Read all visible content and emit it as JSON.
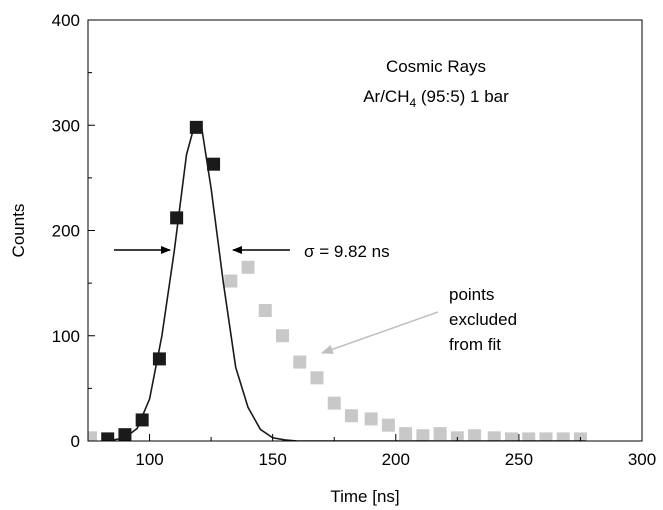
{
  "chart_data": {
    "type": "scatter",
    "title": "",
    "xlabel": "Time [ns]",
    "ylabel": "Counts",
    "xlim": [
      75,
      300
    ],
    "ylim": [
      0,
      400
    ],
    "xticks": [
      100,
      150,
      200,
      250,
      300
    ],
    "yticks": [
      0,
      100,
      200,
      300,
      400
    ],
    "grid": false,
    "legend": "none",
    "series": [
      {
        "role": "fitted",
        "marker": "square",
        "color": "#1a1a1a",
        "x": [
          83,
          90,
          97,
          104,
          111,
          119,
          126
        ],
        "y": [
          2,
          6,
          20,
          78,
          212,
          298,
          263
        ]
      },
      {
        "role": "excluded",
        "marker": "square",
        "color": "#c8c8c8",
        "x": [
          76,
          133,
          140,
          147,
          154,
          161,
          168,
          175,
          182,
          190,
          197,
          204,
          211,
          218,
          225,
          232,
          240,
          247,
          254,
          261,
          268,
          275
        ],
        "y": [
          3,
          152,
          165,
          124,
          100,
          75,
          60,
          36,
          24,
          21,
          15,
          7,
          5,
          7,
          3,
          5,
          3,
          2,
          2,
          2,
          2,
          2
        ]
      },
      {
        "role": "fit-curve",
        "line": true,
        "color": "#1a1a1a",
        "x": [
          83,
          90,
          95,
          100,
          105,
          110,
          115,
          118,
          121,
          125,
          130,
          135,
          140,
          145,
          150,
          155,
          160,
          170,
          180,
          200,
          230,
          277
        ],
        "y": [
          0,
          3,
          12,
          40,
          100,
          180,
          272,
          298,
          300,
          240,
          150,
          70,
          32,
          11,
          3,
          1,
          0,
          0,
          0,
          0,
          0,
          0
        ]
      }
    ],
    "annotations": {
      "title_line1": "Cosmic Rays",
      "title_line2_main": "Ar/CH",
      "title_line2_sub": "4",
      "title_line2_rest": " (95:5) 1 bar",
      "sigma": "σ = 9.82 ns",
      "excluded_line1": "points",
      "excluded_line2": "excluded",
      "excluded_line3": "from fit"
    },
    "colors": {
      "axis": "#000000",
      "fit_marker": "#1a1a1a",
      "excluded_marker": "#c8c8c8",
      "excluded_arrow": "#c0c0c0"
    }
  }
}
